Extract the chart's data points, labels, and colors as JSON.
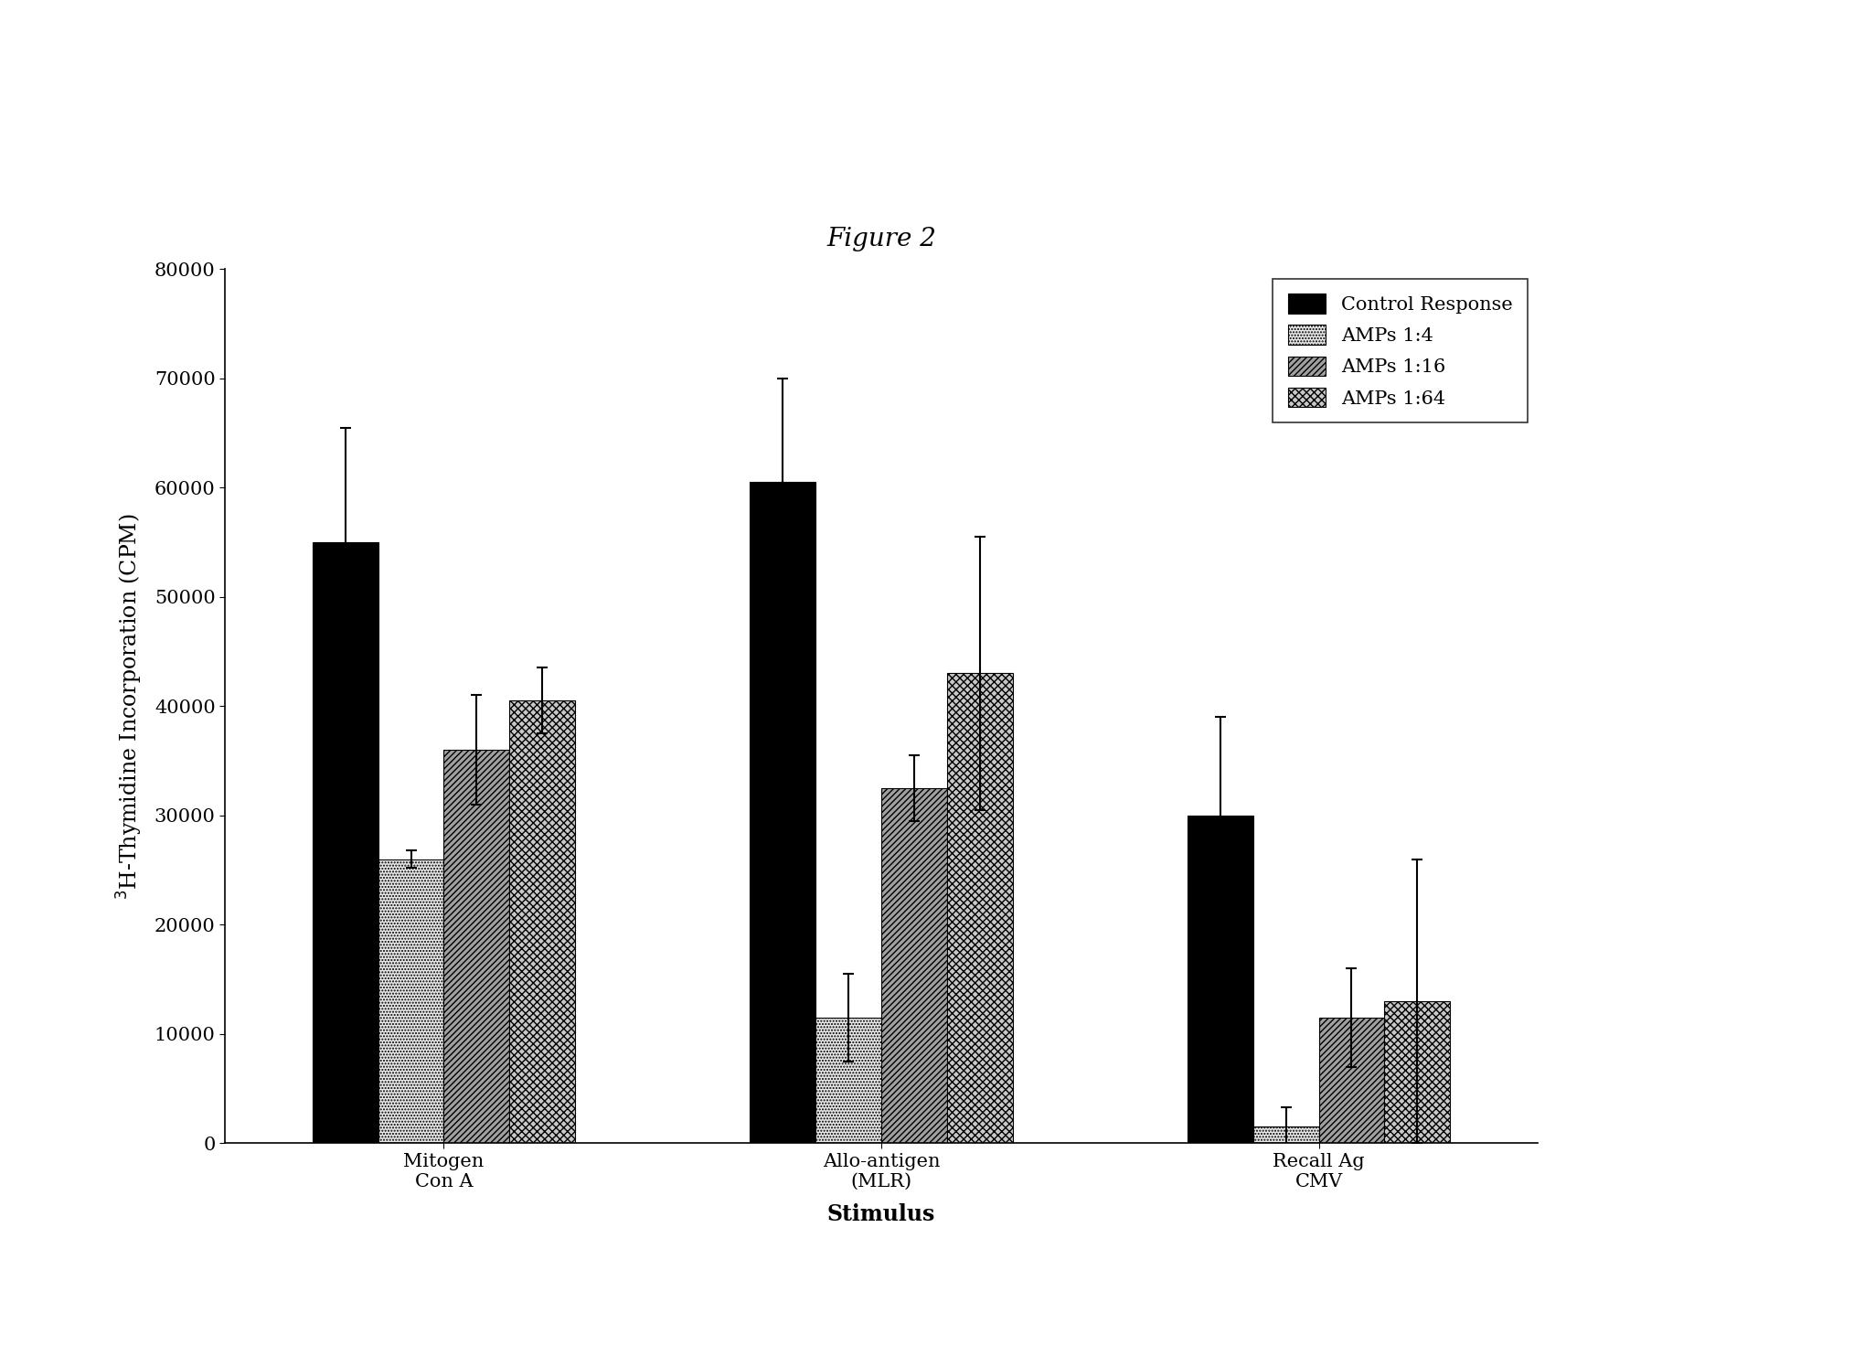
{
  "title": "Figure 2",
  "xlabel": "Stimulus",
  "ylabel": "$^{3}$H-Thymidine Incorporation (CPM)",
  "categories": [
    "Mitogen\nCon A",
    "Allo-antigen\n(MLR)",
    "Recall Ag\nCMV"
  ],
  "series": [
    {
      "label": "Control Response",
      "values": [
        55000,
        60500,
        30000
      ],
      "errors": [
        10500,
        9500,
        9000
      ],
      "color": "#000000",
      "hatch": ""
    },
    {
      "label": "AMPs 1:4",
      "values": [
        26000,
        11500,
        1500
      ],
      "errors": [
        800,
        4000,
        1800
      ],
      "color": "#e8e8e8",
      "hatch": "....."
    },
    {
      "label": "AMPs 1:16",
      "values": [
        36000,
        32500,
        11500
      ],
      "errors": [
        5000,
        3000,
        4500
      ],
      "color": "#a0a0a0",
      "hatch": "/////"
    },
    {
      "label": "AMPs 1:64",
      "values": [
        40500,
        43000,
        13000
      ],
      "errors": [
        3000,
        12500,
        13000
      ],
      "color": "#c8c8c8",
      "hatch": "xxxx"
    }
  ],
  "ylim": [
    0,
    80000
  ],
  "yticks": [
    0,
    10000,
    20000,
    30000,
    40000,
    50000,
    60000,
    70000,
    80000
  ],
  "bar_width": 0.15,
  "background_color": "#ffffff",
  "legend_loc": "upper right",
  "title_fontsize": 20,
  "label_fontsize": 17,
  "tick_fontsize": 15,
  "legend_fontsize": 15
}
